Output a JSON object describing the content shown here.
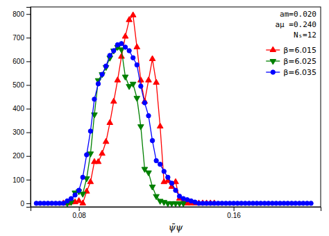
{
  "chart_data": {
    "type": "line",
    "xlabel": "ψ̄ψ",
    "xlim": [
      0.055,
      0.205
    ],
    "ylim": [
      -15,
      830
    ],
    "xticks": [
      0.08,
      0.16
    ],
    "yticks": [
      0,
      100,
      200,
      300,
      400,
      500,
      600,
      700,
      800
    ],
    "annotations": [
      "am=0.020",
      "aμ =0.240",
      "Nₛ=12"
    ],
    "legend": "upper right",
    "series": [
      {
        "name": "β=6.015",
        "color": "red",
        "marker": "triangle-up",
        "x": [
          0.072,
          0.074,
          0.076,
          0.078,
          0.08,
          0.082,
          0.084,
          0.086,
          0.088,
          0.09,
          0.092,
          0.094,
          0.096,
          0.098,
          0.1,
          0.102,
          0.104,
          0.106,
          0.108,
          0.11,
          0.112,
          0.114,
          0.116,
          0.118,
          0.12,
          0.122,
          0.124,
          0.126,
          0.128,
          0.13,
          0.132,
          0.134,
          0.136,
          0.138,
          0.14,
          0.142,
          0.144,
          0.146,
          0.148,
          0.15
        ],
        "values": [
          0,
          0,
          5,
          5,
          10,
          0,
          50,
          90,
          175,
          175,
          210,
          260,
          340,
          430,
          520,
          620,
          705,
          775,
          795,
          660,
          520,
          430,
          520,
          610,
          510,
          325,
          90,
          95,
          70,
          90,
          20,
          5,
          0,
          0,
          0,
          0,
          0,
          0,
          0,
          0
        ]
      },
      {
        "name": "β=6.025",
        "color": "green",
        "marker": "triangle-down",
        "x": [
          0.074,
          0.076,
          0.078,
          0.08,
          0.082,
          0.084,
          0.086,
          0.088,
          0.09,
          0.092,
          0.094,
          0.096,
          0.098,
          0.1,
          0.102,
          0.104,
          0.106,
          0.108,
          0.11,
          0.112,
          0.114,
          0.116,
          0.118,
          0.12,
          0.122,
          0.124,
          0.126,
          0.128,
          0.13,
          0.132,
          0.134
        ],
        "values": [
          0,
          5,
          45,
          50,
          40,
          105,
          210,
          375,
          520,
          545,
          575,
          615,
          645,
          660,
          650,
          535,
          495,
          505,
          445,
          325,
          145,
          130,
          70,
          30,
          10,
          5,
          0,
          0,
          0,
          0,
          0
        ]
      },
      {
        "name": "β=6.035",
        "color": "blue",
        "marker": "circle",
        "x": [
          0.058,
          0.06,
          0.062,
          0.064,
          0.066,
          0.068,
          0.07,
          0.072,
          0.074,
          0.076,
          0.078,
          0.08,
          0.082,
          0.084,
          0.086,
          0.088,
          0.09,
          0.092,
          0.094,
          0.096,
          0.098,
          0.1,
          0.102,
          0.104,
          0.106,
          0.108,
          0.11,
          0.112,
          0.114,
          0.116,
          0.118,
          0.12,
          0.122,
          0.124,
          0.126,
          0.128,
          0.13,
          0.132,
          0.134,
          0.136,
          0.138,
          0.14,
          0.142,
          0.144,
          0.146,
          0.148,
          0.15,
          0.152,
          0.154,
          0.156,
          0.158,
          0.16,
          0.162,
          0.164,
          0.166,
          0.168,
          0.17,
          0.172,
          0.174,
          0.176,
          0.178,
          0.18,
          0.182,
          0.184,
          0.186,
          0.188,
          0.19,
          0.192,
          0.194,
          0.196,
          0.198,
          0.2
        ],
        "values": [
          0,
          0,
          0,
          0,
          0,
          0,
          0,
          0,
          10,
          20,
          35,
          55,
          110,
          205,
          305,
          440,
          505,
          545,
          580,
          625,
          645,
          670,
          675,
          660,
          645,
          615,
          585,
          495,
          425,
          370,
          265,
          180,
          165,
          135,
          110,
          85,
          55,
          30,
          20,
          15,
          10,
          5,
          0,
          0,
          0,
          0,
          0,
          0,
          0,
          0,
          0,
          0,
          0,
          0,
          0,
          0,
          0,
          0,
          0,
          0,
          0,
          0,
          0,
          0,
          0,
          0,
          0,
          0,
          0,
          0,
          0,
          0
        ]
      }
    ]
  }
}
